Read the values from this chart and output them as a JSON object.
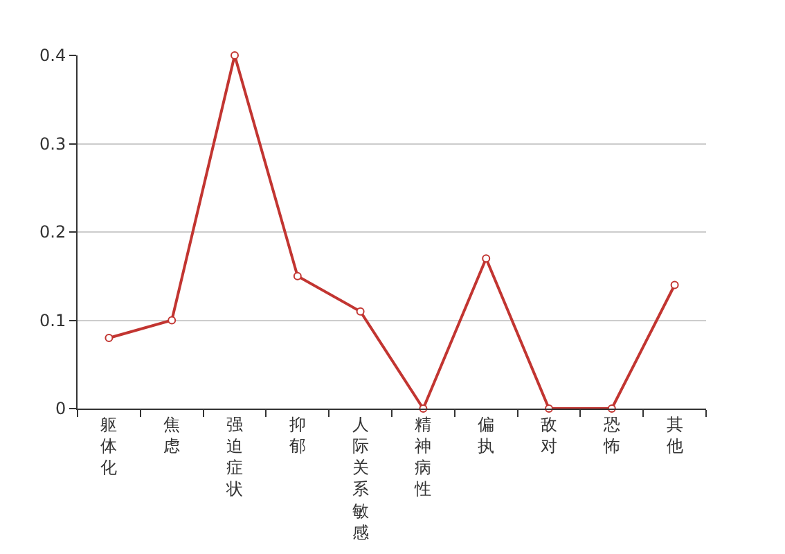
{
  "chart_data": {
    "type": "line",
    "categories": [
      "躯体化",
      "焦虑",
      "强迫症状",
      "抑郁",
      "人际关系敏感",
      "精神病性",
      "偏执",
      "敌对",
      "恐怖",
      "其他"
    ],
    "series": [
      {
        "color": "#c23531",
        "values": [
          0.08,
          0.1,
          0.4,
          0.15,
          0.11,
          0,
          0.17,
          0,
          0,
          0.14
        ]
      }
    ],
    "ylim": [
      0,
      0.4
    ],
    "yticks": [
      0,
      0.1,
      0.2,
      0.3,
      0.4
    ],
    "grid": "y",
    "marker": "circle"
  }
}
